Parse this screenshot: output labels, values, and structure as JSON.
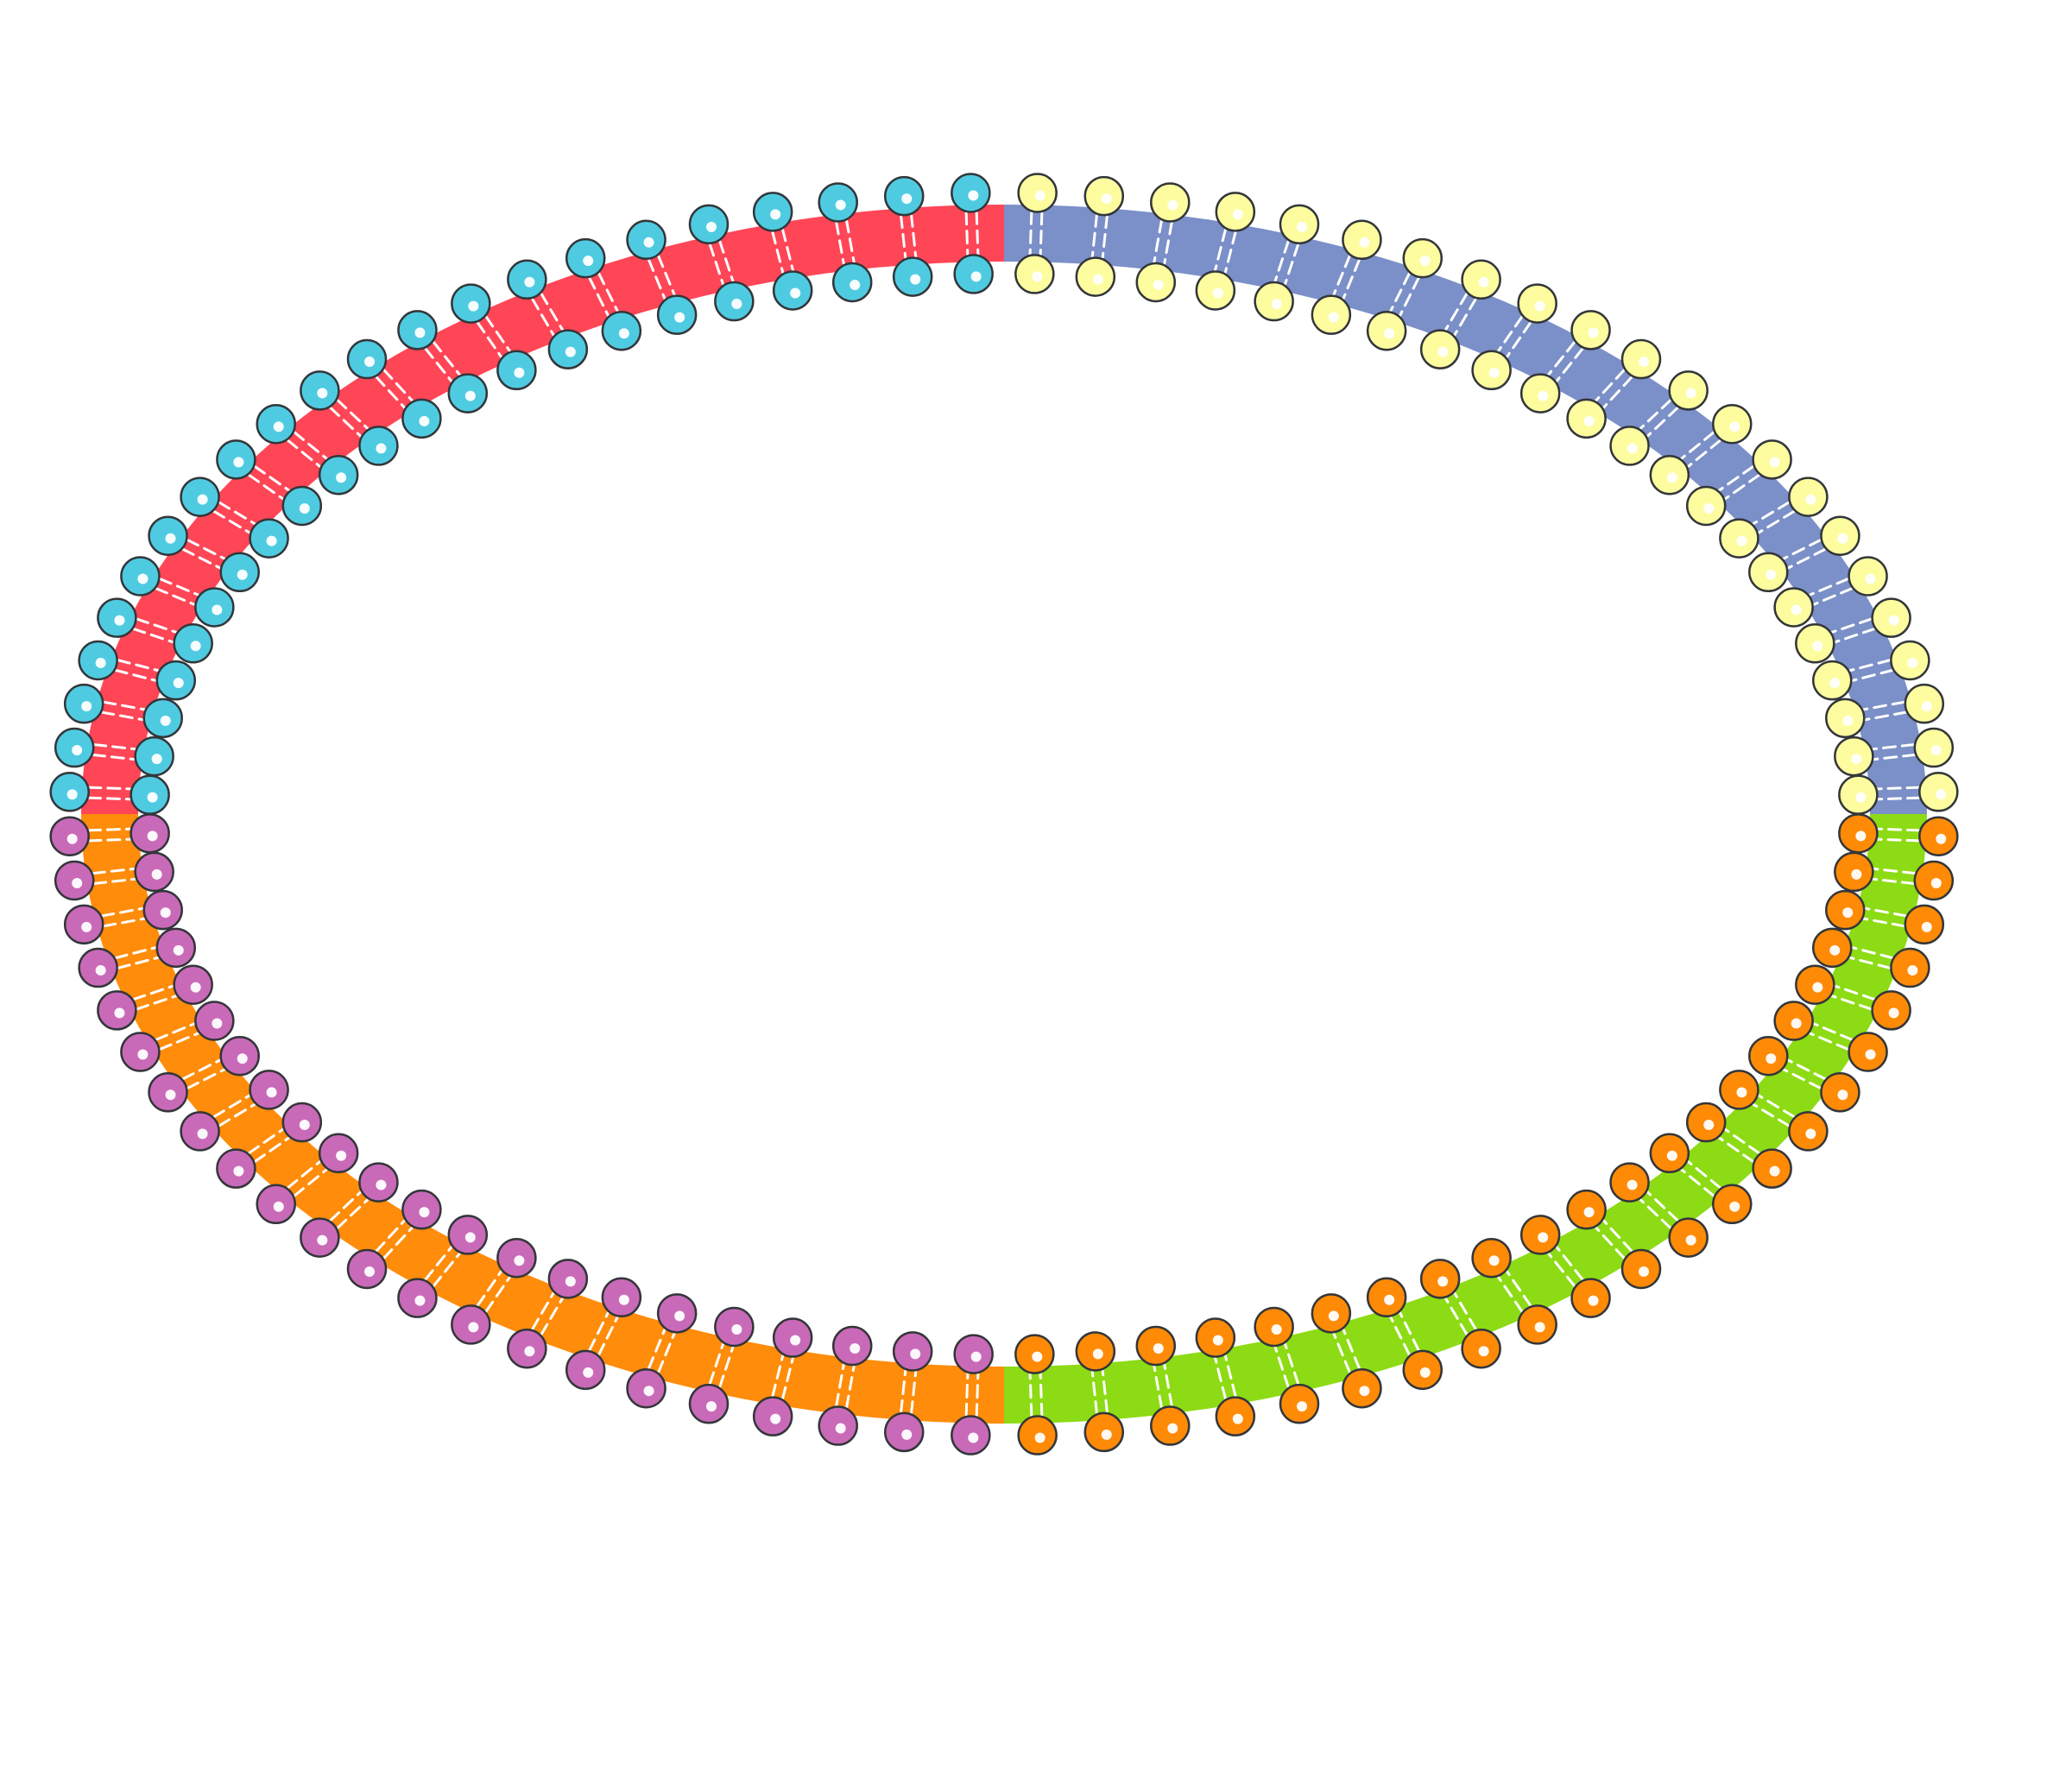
{
  "diagram": {
    "type": "lipid-bilayer-ring",
    "background": "#ffffff",
    "outline_color": "#33363a",
    "dash_color": "#ffffff",
    "highlight_color": "#ffffff",
    "quadrants": [
      {
        "id": "top-left",
        "band_color": "#ff4657",
        "head_color": "#4fcbe1",
        "lipids": 22
      },
      {
        "id": "top-right",
        "band_color": "#7b90c8",
        "head_color": "#fdfd9f",
        "lipids": 22
      },
      {
        "id": "bottom-right",
        "band_color": "#8ddb14",
        "head_color": "#ff8a06",
        "lipids": 22
      },
      {
        "id": "bottom-left",
        "band_color": "#ff8c0a",
        "head_color": "#c96ab8",
        "lipids": 22
      }
    ]
  }
}
